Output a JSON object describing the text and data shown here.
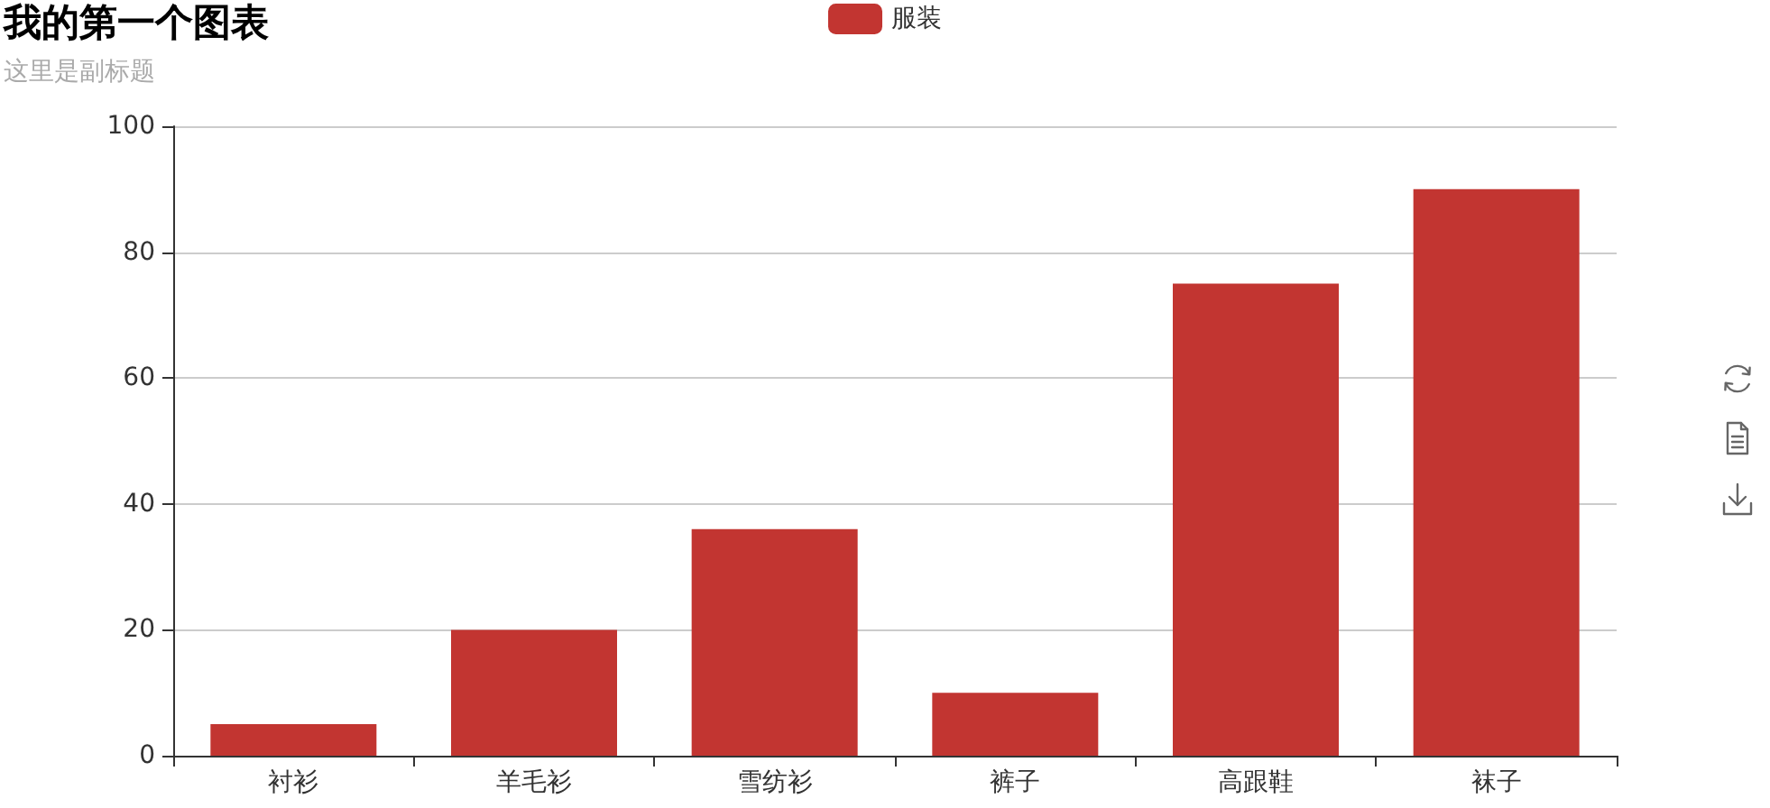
{
  "chart_data": {
    "type": "bar",
    "title": "我的第一个图表",
    "subtitle": "这里是副标题",
    "categories": [
      "衬衫",
      "羊毛衫",
      "雪纺衫",
      "裤子",
      "高跟鞋",
      "袜子"
    ],
    "series": [
      {
        "name": "服装",
        "color": "#c23531",
        "values": [
          5,
          20,
          36,
          10,
          75,
          90
        ]
      }
    ],
    "ylim": [
      0,
      100
    ],
    "yticks": [
      0,
      20,
      40,
      60,
      80,
      100
    ],
    "grid": "y",
    "legend": "top"
  }
}
